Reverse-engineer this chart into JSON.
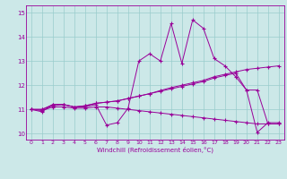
{
  "xlabel": "Windchill (Refroidissement éolien,°C)",
  "xlim": [
    -0.5,
    23.5
  ],
  "ylim": [
    9.75,
    15.3
  ],
  "xticks": [
    0,
    1,
    2,
    3,
    4,
    5,
    6,
    7,
    8,
    9,
    10,
    11,
    12,
    13,
    14,
    15,
    16,
    17,
    18,
    19,
    20,
    21,
    22,
    23
  ],
  "yticks": [
    10,
    11,
    12,
    13,
    14,
    15
  ],
  "bg_color": "#cce8e8",
  "grid_color": "#99cccc",
  "line_color": "#990099",
  "line1_x": [
    0,
    1,
    2,
    3,
    4,
    5,
    6,
    7,
    8,
    9,
    10,
    11,
    12,
    13,
    14,
    15,
    16,
    17,
    18,
    19,
    20,
    21,
    22,
    23
  ],
  "line1_y": [
    11.0,
    10.9,
    11.2,
    11.2,
    11.1,
    11.1,
    11.2,
    10.35,
    10.45,
    11.05,
    13.0,
    13.3,
    13.0,
    14.55,
    12.9,
    14.7,
    14.35,
    13.1,
    12.8,
    12.35,
    11.8,
    10.05,
    10.45,
    10.45
  ],
  "line2_x": [
    0,
    1,
    2,
    3,
    4,
    5,
    6,
    7,
    8,
    9,
    10,
    11,
    12,
    13,
    14,
    15,
    16,
    17,
    18,
    19,
    20,
    21,
    22,
    23
  ],
  "line2_y": [
    11.0,
    11.0,
    11.15,
    11.2,
    11.1,
    11.15,
    11.25,
    11.3,
    11.35,
    11.45,
    11.55,
    11.65,
    11.78,
    11.9,
    12.0,
    12.1,
    12.2,
    12.35,
    12.45,
    12.55,
    12.65,
    12.7,
    12.75,
    12.8
  ],
  "line3_x": [
    0,
    1,
    2,
    3,
    4,
    5,
    6,
    7,
    8,
    9,
    10,
    11,
    12,
    13,
    14,
    15,
    16,
    17,
    18,
    19,
    20,
    21,
    22,
    23
  ],
  "line3_y": [
    11.0,
    10.95,
    11.1,
    11.1,
    11.05,
    11.05,
    11.1,
    11.1,
    11.05,
    11.0,
    10.95,
    10.9,
    10.85,
    10.8,
    10.75,
    10.7,
    10.65,
    10.6,
    10.55,
    10.5,
    10.45,
    10.4,
    10.4,
    10.4
  ],
  "line4_x": [
    0,
    1,
    2,
    3,
    4,
    5,
    6,
    7,
    8,
    9,
    10,
    11,
    12,
    13,
    14,
    15,
    16,
    17,
    18,
    19,
    20,
    21,
    22,
    23
  ],
  "line4_y": [
    11.0,
    11.0,
    11.2,
    11.2,
    11.1,
    11.15,
    11.25,
    11.3,
    11.35,
    11.45,
    11.55,
    11.65,
    11.75,
    11.85,
    11.95,
    12.05,
    12.15,
    12.3,
    12.4,
    12.5,
    11.8,
    11.8,
    10.4,
    10.4
  ]
}
